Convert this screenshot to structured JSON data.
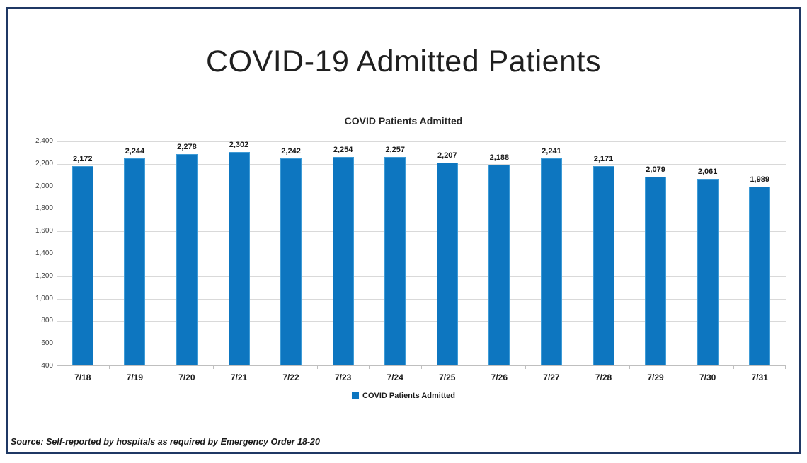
{
  "frame": {
    "border_color": "#1f3864"
  },
  "header": {
    "title": "COVID-19 Admitted Patients"
  },
  "chart_data": {
    "type": "bar",
    "title": "COVID Patients Admitted",
    "categories": [
      "7/18",
      "7/19",
      "7/20",
      "7/21",
      "7/22",
      "7/23",
      "7/24",
      "7/25",
      "7/26",
      "7/27",
      "7/28",
      "7/29",
      "7/30",
      "7/31"
    ],
    "values": [
      2172,
      2244,
      2278,
      2302,
      2242,
      2254,
      2257,
      2207,
      2188,
      2241,
      2171,
      2079,
      2061,
      1989
    ],
    "data_labels": [
      "2,172",
      "2,244",
      "2,278",
      "2,302",
      "2,242",
      "2,254",
      "2,257",
      "2,207",
      "2,188",
      "2,241",
      "2,171",
      "2,079",
      "2,061",
      "1,989"
    ],
    "y_tick_labels": [
      "2,400",
      "2,200",
      "2,000",
      "1,800",
      "1,600",
      "1,400",
      "1,200",
      "1,000",
      "800",
      "600",
      "400"
    ],
    "ylim": [
      400,
      2400
    ],
    "grid": true,
    "legend": {
      "label": "COVID Patients Admitted",
      "position": "bottom"
    },
    "colors": {
      "bar": "#0d76c0",
      "bar_border": "#3e9bd6",
      "gridline": "#d9d9d9",
      "axis": "#bfbfbf"
    }
  },
  "footer": {
    "source_note": "Source: Self-reported by hospitals as required by Emergency Order 18-20"
  }
}
